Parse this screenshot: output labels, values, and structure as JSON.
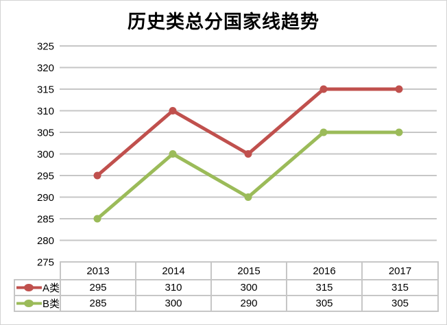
{
  "chart_data": {
    "type": "line",
    "title": "历史类总分国家线趋势",
    "categories": [
      "2013",
      "2014",
      "2015",
      "2016",
      "2017"
    ],
    "series": [
      {
        "name": "A类",
        "color": "#c0504d",
        "values": [
          295,
          310,
          300,
          315,
          315
        ]
      },
      {
        "name": "B类",
        "color": "#9bbb59",
        "values": [
          285,
          300,
          290,
          305,
          305
        ]
      }
    ],
    "xlabel": "",
    "ylabel": "",
    "ylim": [
      275,
      325
    ],
    "yticks": [
      275,
      280,
      285,
      290,
      295,
      300,
      305,
      310,
      315,
      320,
      325
    ],
    "grid": "horizontal",
    "marker": "circle",
    "legend_position": "data-table-left",
    "data_table_shown": true
  },
  "colors": {
    "series_a": "#c0504d",
    "series_b": "#9bbb59",
    "gridline": "#c6c6c6",
    "table_border": "#c6c6c6",
    "text": "#000000",
    "background": "#ffffff"
  }
}
